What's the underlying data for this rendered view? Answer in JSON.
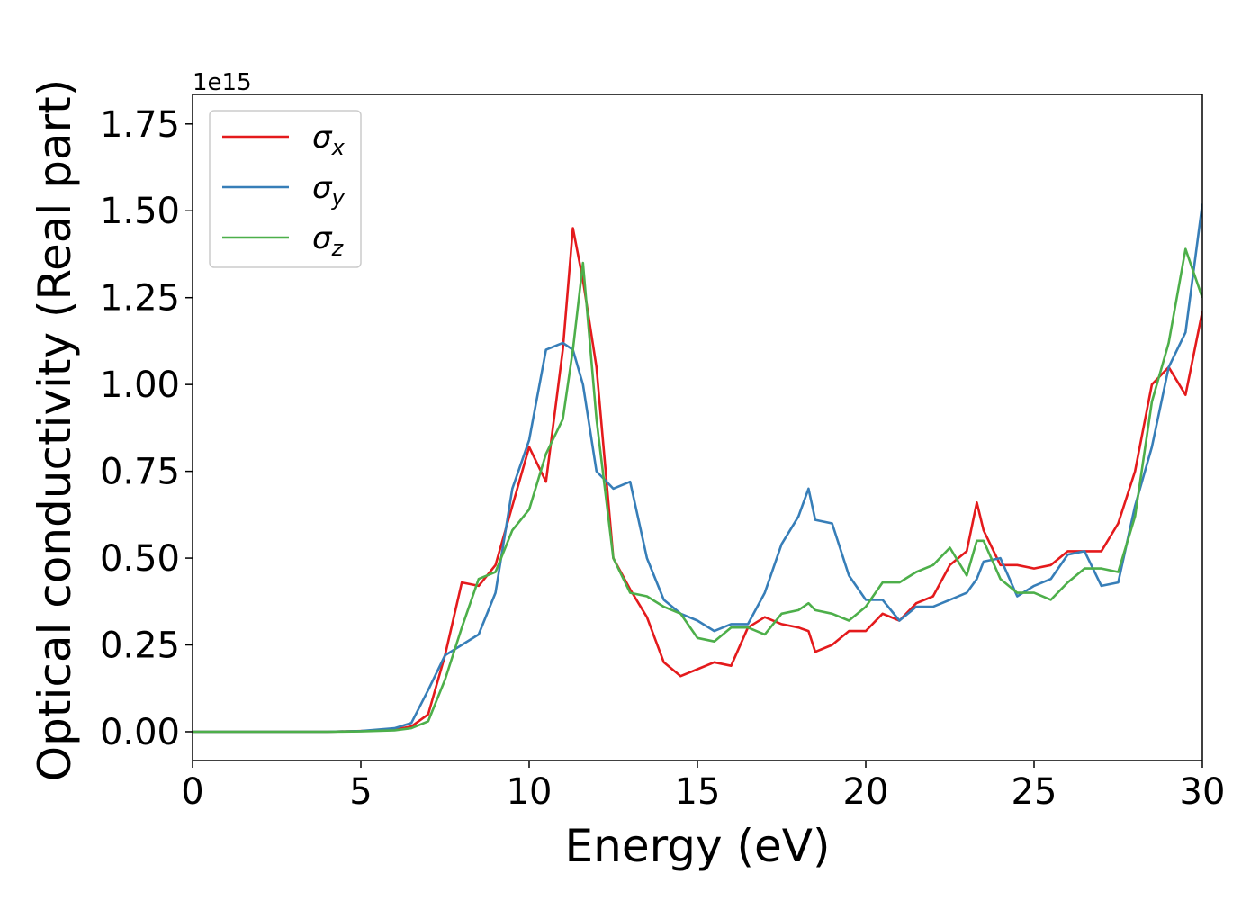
{
  "chart_data": {
    "type": "line",
    "xlabel": "Energy (eV)",
    "ylabel": "Optical conductivity (Real part)",
    "y_offset_label": "1e15",
    "x": [
      0,
      2,
      4,
      5,
      6,
      6.5,
      7,
      7.5,
      8,
      8.5,
      9,
      9.5,
      10,
      10.5,
      11,
      11.3,
      11.6,
      12,
      12.5,
      13,
      13.5,
      14,
      14.5,
      15,
      15.5,
      16,
      16.5,
      17,
      17.5,
      18,
      18.3,
      18.5,
      19,
      19.5,
      20,
      20.5,
      21,
      21.5,
      22,
      22.5,
      23,
      23.3,
      23.5,
      24,
      24.5,
      25,
      25.5,
      26,
      26.5,
      27,
      27.5,
      28,
      28.5,
      29,
      29.5,
      30
    ],
    "series": [
      {
        "name": "σx",
        "color": "#e41a1c",
        "values": [
          0,
          0,
          0,
          0.002,
          0.006,
          0.015,
          0.05,
          0.22,
          0.43,
          0.42,
          0.48,
          0.65,
          0.82,
          0.72,
          1.1,
          1.45,
          1.3,
          1.05,
          0.5,
          0.41,
          0.33,
          0.2,
          0.16,
          0.18,
          0.2,
          0.19,
          0.3,
          0.33,
          0.31,
          0.3,
          0.29,
          0.23,
          0.25,
          0.29,
          0.29,
          0.34,
          0.32,
          0.37,
          0.39,
          0.48,
          0.52,
          0.66,
          0.58,
          0.48,
          0.48,
          0.47,
          0.48,
          0.52,
          0.52,
          0.52,
          0.6,
          0.75,
          1.0,
          1.05,
          0.97,
          1.21
        ]
      },
      {
        "name": "σy",
        "color": "#377eb8",
        "values": [
          0,
          0,
          0,
          0.002,
          0.01,
          0.025,
          0.12,
          0.22,
          0.25,
          0.28,
          0.4,
          0.7,
          0.84,
          1.1,
          1.12,
          1.1,
          1.0,
          0.75,
          0.7,
          0.72,
          0.5,
          0.38,
          0.34,
          0.32,
          0.29,
          0.31,
          0.31,
          0.4,
          0.54,
          0.62,
          0.7,
          0.61,
          0.6,
          0.45,
          0.38,
          0.38,
          0.32,
          0.36,
          0.36,
          0.38,
          0.4,
          0.44,
          0.49,
          0.5,
          0.39,
          0.42,
          0.44,
          0.51,
          0.52,
          0.42,
          0.43,
          0.65,
          0.82,
          1.05,
          1.15,
          1.52
        ]
      },
      {
        "name": "σz",
        "color": "#4daf4a",
        "values": [
          0,
          0,
          0,
          0.001,
          0.004,
          0.01,
          0.03,
          0.15,
          0.3,
          0.44,
          0.46,
          0.58,
          0.64,
          0.8,
          0.9,
          1.1,
          1.35,
          0.9,
          0.5,
          0.4,
          0.39,
          0.36,
          0.34,
          0.27,
          0.26,
          0.3,
          0.3,
          0.28,
          0.34,
          0.35,
          0.37,
          0.35,
          0.34,
          0.32,
          0.36,
          0.43,
          0.43,
          0.46,
          0.48,
          0.53,
          0.45,
          0.55,
          0.55,
          0.44,
          0.4,
          0.4,
          0.38,
          0.43,
          0.47,
          0.47,
          0.46,
          0.62,
          0.95,
          1.12,
          1.39,
          1.25
        ]
      }
    ],
    "xlim": [
      0,
      30
    ],
    "xticks": [
      0,
      5,
      10,
      15,
      20,
      25,
      30
    ],
    "ylim": [
      -0.083,
      1.835
    ],
    "yticks": [
      {
        "value": 0,
        "label": "0.00"
      },
      0.25,
      {
        "value": 0.5,
        "label": "0.50"
      },
      0.75,
      {
        "value": 1,
        "label": "1.00"
      },
      1.25,
      {
        "value": 1.5,
        "label": "1.50"
      },
      1.75
    ],
    "legend": "upper left",
    "grid": false
  }
}
